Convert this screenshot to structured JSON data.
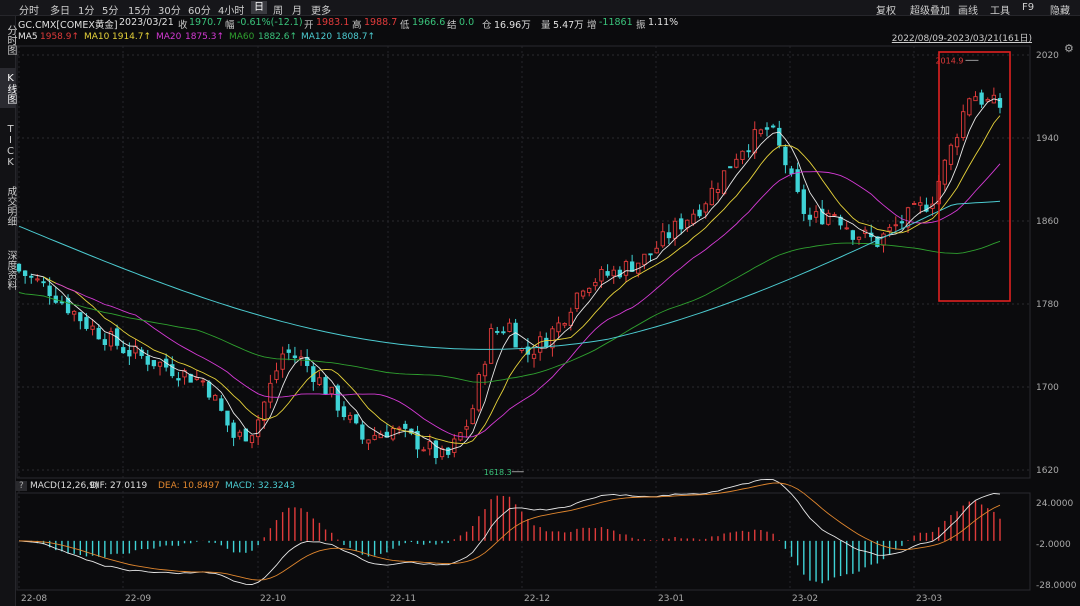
{
  "toolbar": {
    "periods": [
      "分时",
      "多日",
      "1分",
      "5分",
      "15分",
      "30分",
      "60分",
      "4小时",
      "日",
      "周",
      "月",
      "更多"
    ],
    "active_period": "日",
    "right": [
      "复权",
      "超级叠加",
      "画线",
      "工具",
      "F9",
      "隐藏"
    ]
  },
  "sidebar": [
    "分时图",
    "K线图",
    "TICK",
    "成交明细",
    "深度资料"
  ],
  "info": {
    "symbol": "GC.CMX[COMEX黄金]",
    "date": "2023/03/21",
    "close_label": "收",
    "close": "1970.7",
    "change_label": "幅",
    "change": "-0.61%(-12.1)",
    "open_label": "开",
    "open": "1983.1",
    "high_label": "高",
    "high": "1988.7",
    "low_label": "低",
    "low": "1966.6",
    "settle_label": "结",
    "settle": "0.0",
    "hold_label": "仓",
    "hold": "16.96万",
    "volume_label": "量",
    "volume": "5.47万",
    "increase_label": "增",
    "increase": "-11861",
    "amplitude_label": "振",
    "amplitude": "1.11%"
  },
  "ma": {
    "ma5": "MA5",
    "ma5_val": "1958.9↑",
    "ma10": "MA10",
    "ma10_val": "1914.7↑",
    "ma20": "MA20",
    "ma20_val": "1875.3↑",
    "ma60": "MA60",
    "ma60_val": "1882.6↑",
    "ma120": "MA120",
    "ma120_val": "1808.7↑"
  },
  "date_range": "2022/08/09-2023/03/21(161日)",
  "colors": {
    "up": "#e03b3b",
    "down": "#3fd3d6",
    "ma5": "#e8e8e8",
    "ma10": "#e6d23a",
    "ma20": "#d43ad4",
    "ma60": "#2fa02f",
    "ma120": "#4ccbd0",
    "dea": "#e0862e"
  },
  "chart_data": {
    "type": "candlestick",
    "ylim": [
      1600,
      2025
    ],
    "y_ticks": [
      "2020",
      "1940",
      "1860",
      "1780",
      "1700",
      "1620"
    ],
    "x_tick_labels": [
      "22-08",
      "22-09",
      "22-10",
      "22-11",
      "22-12",
      "23-01",
      "23-02",
      "23-03"
    ],
    "annotations": {
      "max": "2014.9",
      "min": "1618.3"
    },
    "ma120_start": 1855,
    "ma120_end": 1810,
    "macd": {
      "label": "MACD(12,26,9)",
      "dif": "DIF: 27.0119",
      "dea": "DEA: 10.8497",
      "macd": "MACD: 32.3243",
      "y_ticks": [
        "24.0000",
        "-2.0000",
        "-28.0000"
      ],
      "ylim": [
        -32,
        32
      ]
    }
  }
}
